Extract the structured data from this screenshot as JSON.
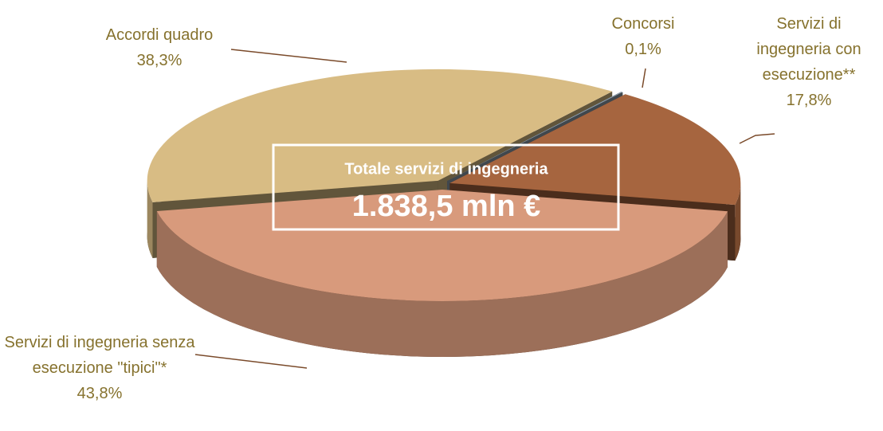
{
  "chart_data": {
    "type": "pie",
    "categories": [
      "Accordi quadro",
      "Concorsi",
      "Servizi di ingegneria con esecuzione**",
      "Servizi di ingegneria senza esecuzione \"tipici\"*"
    ],
    "values": [
      38.3,
      0.1,
      17.8,
      43.8
    ],
    "value_labels": [
      "38,3%",
      "0,1%",
      "17,8%",
      "43,8%"
    ],
    "colors": [
      "#d8bc84",
      "#8e9eab",
      "#a6653f",
      "#d89a7c"
    ],
    "annotations": [
      "Totale servizi di ingegneria",
      "1.838,5 mln €"
    ]
  }
}
